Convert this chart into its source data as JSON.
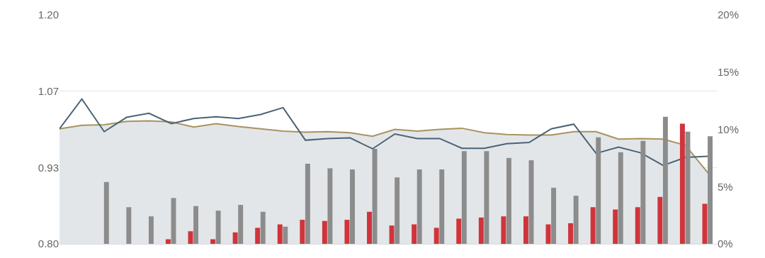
{
  "chart_data": {
    "type": "bar",
    "categories": [
      null,
      null,
      null,
      null,
      null,
      null,
      null,
      null,
      null,
      null,
      null,
      null,
      null,
      null,
      null,
      null,
      null,
      null,
      null,
      null,
      null,
      null,
      null,
      null,
      null,
      null,
      null,
      null,
      null,
      null
    ],
    "series": [
      {
        "type": "area",
        "color": "#a8935f",
        "values": [
          1.001,
          1.007,
          1.008,
          1.014,
          1.015,
          1.013,
          1.004,
          1.01,
          1.005,
          1.001,
          0.997,
          0.995,
          0.996,
          0.994,
          0.988,
          1.0,
          0.997,
          1.0,
          1.002,
          0.994,
          0.991,
          0.99,
          0.99,
          0.996,
          0.996,
          0.983,
          0.984,
          0.983,
          0.972,
          0.924
        ]
      },
      {
        "type": "line",
        "color": "#4b6375",
        "values": [
          1.001,
          1.053,
          0.996,
          1.021,
          1.028,
          1.01,
          1.019,
          1.022,
          1.019,
          1.026,
          1.038,
          0.981,
          0.984,
          0.985,
          0.966,
          0.992,
          0.984,
          0.984,
          0.967,
          0.967,
          0.975,
          0.977,
          1.001,
          1.009,
          0.958,
          0.969,
          0.959,
          0.937,
          0.951,
          0.953
        ]
      },
      {
        "axis": "y2",
        "color": "#d0343a",
        "values": [
          null,
          null,
          null,
          null,
          null,
          0.4,
          1.1,
          0.4,
          1.0,
          1.4,
          1.7,
          2.1,
          2.0,
          2.1,
          2.8,
          1.6,
          1.7,
          1.4,
          2.2,
          2.3,
          2.4,
          2.4,
          1.7,
          1.8,
          3.2,
          3.0,
          3.2,
          4.1,
          10.5,
          3.5
        ]
      },
      {
        "axis": "y2",
        "color": "#8c8c8c",
        "values": [
          null,
          null,
          5.4,
          3.2,
          2.4,
          4.0,
          3.3,
          2.9,
          3.4,
          2.8,
          1.5,
          7.0,
          6.6,
          6.5,
          8.3,
          5.8,
          6.5,
          6.5,
          8.1,
          8.1,
          7.5,
          7.3,
          4.9,
          4.2,
          9.3,
          8.0,
          9.0,
          11.1,
          9.8,
          9.4
        ]
      }
    ],
    "ylim": [
      0.8,
      1.2
    ],
    "yticks": [
      {
        "value": 0.8,
        "label": "0.80"
      },
      {
        "value": 0.9333,
        "label": "0.93"
      },
      {
        "value": 1.0667,
        "label": "1.07"
      },
      {
        "value": 1.2,
        "label": "1.20"
      }
    ],
    "y2lim": [
      0,
      20
    ],
    "y2ticks": [
      {
        "value": 0,
        "label": "0%"
      },
      {
        "value": 5,
        "label": "5%"
      },
      {
        "value": 10,
        "label": "10%"
      },
      {
        "value": 15,
        "label": "15%"
      },
      {
        "value": 20,
        "label": "20%"
      }
    ],
    "grid": "y"
  }
}
